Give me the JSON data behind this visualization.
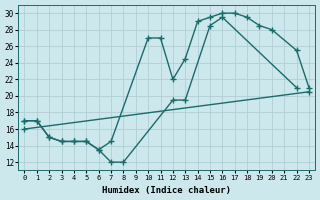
{
  "xlabel": "Humidex (Indice chaleur)",
  "bg_color": "#cce8ec",
  "grid_color": "#b0ced4",
  "line_color": "#1a6b6b",
  "xlim": [
    -0.5,
    23.5
  ],
  "ylim": [
    11,
    31
  ],
  "xticks": [
    0,
    1,
    2,
    3,
    4,
    5,
    6,
    7,
    8,
    9,
    10,
    11,
    12,
    13,
    14,
    15,
    16,
    17,
    18,
    19,
    20,
    21,
    22,
    23
  ],
  "yticks": [
    12,
    14,
    16,
    18,
    20,
    22,
    24,
    26,
    28,
    30
  ],
  "l1x": [
    0,
    1,
    2,
    3,
    4,
    5,
    6,
    7,
    10,
    11,
    12,
    13,
    14,
    15,
    16,
    17,
    18,
    19,
    20,
    22,
    23
  ],
  "l1y": [
    17,
    17,
    15,
    14.5,
    14.5,
    14.5,
    13.5,
    14.5,
    27,
    27,
    22,
    24.5,
    29,
    29.5,
    30,
    30,
    29.5,
    28.5,
    28,
    25.5,
    21
  ],
  "l2x": [
    0,
    1,
    2,
    3,
    4,
    5,
    6,
    7,
    8,
    12,
    13,
    15,
    16,
    22
  ],
  "l2y": [
    17,
    17,
    15,
    14.5,
    14.5,
    14.5,
    13.5,
    12,
    12,
    19.5,
    19.5,
    28.5,
    29.5,
    21
  ],
  "l3x": [
    0,
    23
  ],
  "l3y": [
    16.0,
    20.5
  ]
}
